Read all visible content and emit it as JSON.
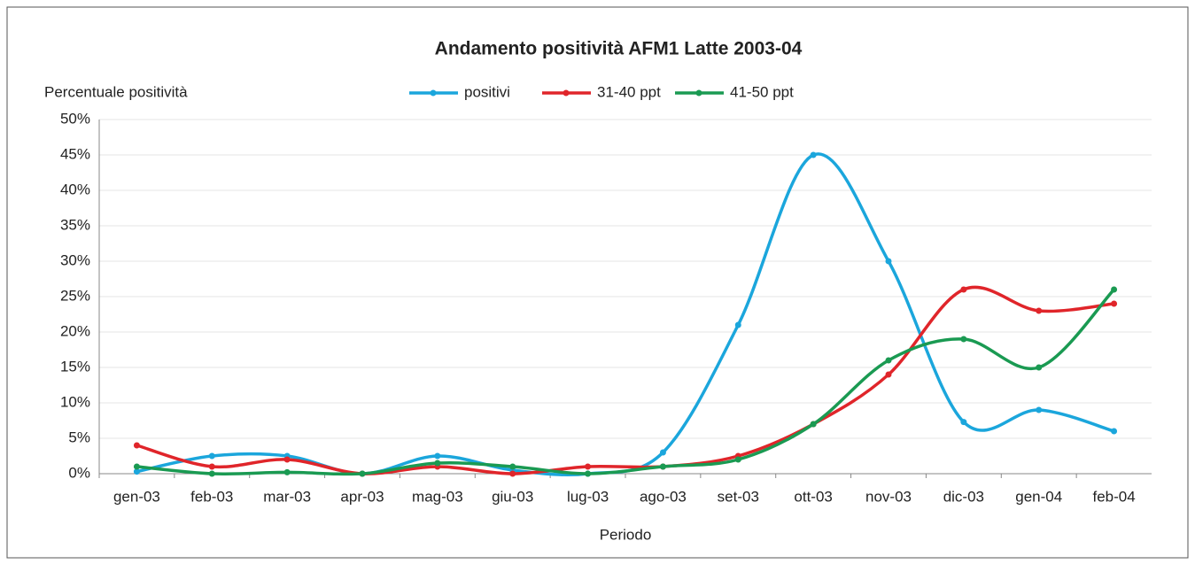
{
  "chart_data": {
    "type": "line",
    "title": "Andamento positività AFM1 Latte 2003-04",
    "y_label": "Percentuale positività",
    "x_label": "Periodo",
    "categories": [
      "gen-03",
      "feb-03",
      "mar-03",
      "apr-03",
      "mag-03",
      "giu-03",
      "lug-03",
      "ago-03",
      "set-03",
      "ott-03",
      "nov-03",
      "dic-03",
      "gen-04",
      "feb-04"
    ],
    "series": [
      {
        "name": "positivi",
        "color": "#1ba6dc",
        "values": [
          0.3,
          2.5,
          2.5,
          0,
          2.5,
          0.5,
          0,
          3,
          21,
          45,
          30,
          7.3,
          9,
          6
        ]
      },
      {
        "name": "31-40 ppt",
        "color": "#e0252a",
        "values": [
          4,
          1,
          2,
          0,
          1,
          0,
          1,
          1,
          2.5,
          7,
          14,
          26,
          23,
          24
        ]
      },
      {
        "name": "41-50 ppt",
        "color": "#1a9a52",
        "values": [
          1,
          0,
          0.2,
          0,
          1.5,
          1,
          0,
          1,
          2,
          7,
          16,
          19,
          15,
          26
        ]
      }
    ],
    "ylim": [
      0,
      50
    ],
    "yticks": [
      {
        "value": 0,
        "label": "0%"
      },
      {
        "value": 5,
        "label": "5%"
      },
      {
        "value": 10,
        "label": "10%"
      },
      {
        "value": 15,
        "label": "15%"
      },
      {
        "value": 20,
        "label": "20%"
      },
      {
        "value": 25,
        "label": "25%"
      },
      {
        "value": 30,
        "label": "30%"
      },
      {
        "value": 35,
        "label": "35%"
      },
      {
        "value": 40,
        "label": "40%"
      },
      {
        "value": 45,
        "label": "45%"
      },
      {
        "value": 50,
        "label": "50%"
      }
    ],
    "grid": true,
    "legend": "top"
  }
}
